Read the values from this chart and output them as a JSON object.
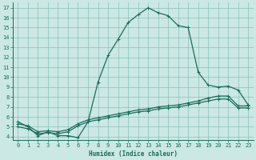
{
  "xlabel": "Humidex (Indice chaleur)",
  "bg_color": "#cce8e4",
  "grid_color": "#88bfba",
  "line_color": "#1a6b5a",
  "xlim": [
    -0.5,
    23.5
  ],
  "ylim": [
    3.7,
    17.5
  ],
  "xticks": [
    0,
    1,
    2,
    3,
    4,
    5,
    6,
    7,
    8,
    9,
    10,
    11,
    12,
    13,
    14,
    15,
    16,
    17,
    18,
    19,
    20,
    21,
    22,
    23
  ],
  "yticks": [
    4,
    5,
    6,
    7,
    8,
    9,
    10,
    11,
    12,
    13,
    14,
    15,
    16,
    17
  ],
  "series1_x": [
    0,
    1,
    2,
    3,
    4,
    5,
    6,
    7,
    8,
    9,
    10,
    11,
    12,
    13,
    14,
    15,
    16,
    17,
    18,
    19,
    20,
    21,
    22,
    23
  ],
  "series1_y": [
    5.5,
    5.0,
    4.1,
    4.5,
    4.1,
    4.1,
    3.9,
    5.5,
    9.5,
    12.2,
    13.8,
    15.5,
    16.3,
    17.0,
    16.5,
    16.2,
    15.2,
    15.0,
    10.5,
    9.2,
    9.0,
    9.1,
    8.7,
    7.2
  ],
  "series2_x": [
    0,
    1,
    2,
    3,
    4,
    5,
    6,
    7,
    8,
    9,
    10,
    11,
    12,
    13,
    14,
    15,
    16,
    17,
    18,
    19,
    20,
    21,
    22,
    23
  ],
  "series2_y": [
    5.0,
    4.8,
    4.3,
    4.4,
    4.3,
    4.5,
    5.1,
    5.5,
    5.7,
    5.9,
    6.1,
    6.3,
    6.5,
    6.6,
    6.8,
    6.9,
    7.0,
    7.2,
    7.4,
    7.6,
    7.8,
    7.8,
    6.9,
    6.9
  ],
  "series3_x": [
    0,
    1,
    2,
    3,
    4,
    5,
    6,
    7,
    8,
    9,
    10,
    11,
    12,
    13,
    14,
    15,
    16,
    17,
    18,
    19,
    20,
    21,
    22,
    23
  ],
  "series3_y": [
    5.3,
    5.1,
    4.5,
    4.6,
    4.5,
    4.7,
    5.3,
    5.7,
    5.9,
    6.1,
    6.3,
    6.5,
    6.7,
    6.8,
    7.0,
    7.1,
    7.2,
    7.4,
    7.6,
    7.9,
    8.1,
    8.1,
    7.1,
    7.1
  ]
}
